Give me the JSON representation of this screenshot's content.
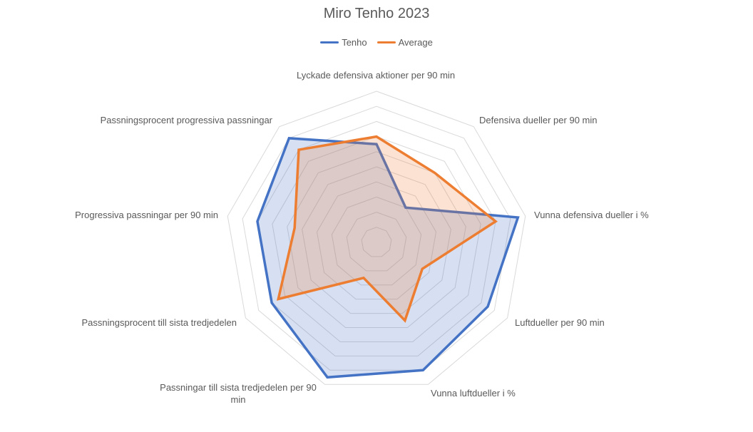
{
  "chart_data": {
    "type": "radar",
    "title": "Miro Tenho 2023",
    "axes": [
      "Lyckade defensiva aktioner per 90 min",
      "Defensiva dueller per 90 min",
      "Vunna defensiva dueller i %",
      "Luftdueller per 90 min",
      "Vunna luftdueller i %",
      "Passningar till sista tredjedelen per 90 min",
      "Passningsprocent till sista tredjedelen",
      "Progressiva passningar per 90 min",
      "Passningsprocent progressiva passningar"
    ],
    "rlim": [
      0,
      100
    ],
    "grid": true,
    "legend_position": "top",
    "series": [
      {
        "name": "Tenho",
        "color": "#4472C4",
        "fill": "#4472C4",
        "values": [
          65,
          30,
          95,
          85,
          90,
          95,
          80,
          80,
          90
        ]
      },
      {
        "name": "Average",
        "color": "#ED7D31",
        "fill": "#ED7D31",
        "values": [
          70,
          60,
          80,
          35,
          55,
          25,
          75,
          55,
          80
        ]
      }
    ]
  }
}
